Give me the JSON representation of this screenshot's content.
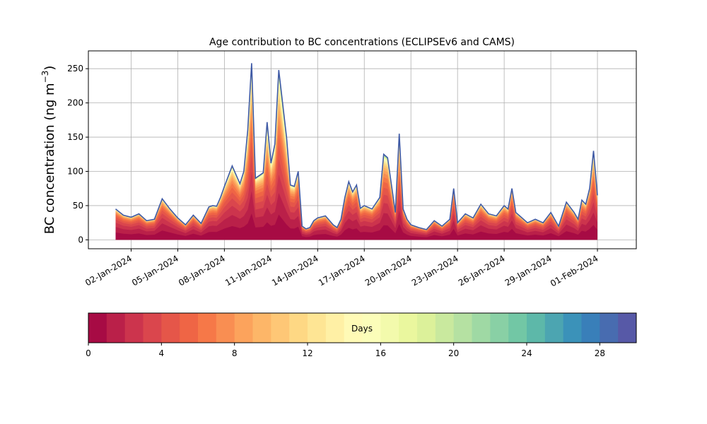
{
  "chart_data": {
    "type": "area",
    "title": "Age contribution to BC concentrations (ECLIPSEv6 and CAMS)",
    "xlabel": "",
    "ylabel": "BC concentration (ng m",
    "ylabel_superscript": "−3",
    "ylabel_suffix": ")",
    "ylim": [
      -13,
      276
    ],
    "yticks": [
      0,
      50,
      100,
      150,
      200,
      250
    ],
    "xlim": [
      "2023-12-30T06:00",
      "2024-02-03T12:00"
    ],
    "xticks": [
      "2024-01-02",
      "2024-01-05",
      "2024-01-08",
      "2024-01-11",
      "2024-01-14",
      "2024-01-17",
      "2024-01-20",
      "2024-01-23",
      "2024-01-26",
      "2024-01-29",
      "2024-02-01"
    ],
    "xtick_labels": [
      "02-Jan-2024",
      "05-Jan-2024",
      "08-Jan-2024",
      "11-Jan-2024",
      "14-Jan-2024",
      "17-Jan-2024",
      "20-Jan-2024",
      "23-Jan-2024",
      "26-Jan-2024",
      "29-Jan-2024",
      "01-Feb-2024"
    ],
    "grid": true,
    "stack_field": "age in days (0–30), one band per day",
    "total": {
      "x": [
        "2024-01-01T00:00",
        "2024-01-01T12:00",
        "2024-01-02T00:00",
        "2024-01-02T12:00",
        "2024-01-03T00:00",
        "2024-01-03T12:00",
        "2024-01-04T00:00",
        "2024-01-04T12:00",
        "2024-01-05T00:00",
        "2024-01-05T12:00",
        "2024-01-06T00:00",
        "2024-01-06T12:00",
        "2024-01-07T00:00",
        "2024-01-07T06:00",
        "2024-01-07T12:00",
        "2024-01-07T18:00",
        "2024-01-08T00:00",
        "2024-01-08T12:00",
        "2024-01-08T18:00",
        "2024-01-09T00:00",
        "2024-01-09T06:00",
        "2024-01-09T12:00",
        "2024-01-09T18:00",
        "2024-01-10T00:00",
        "2024-01-10T12:00",
        "2024-01-10T18:00",
        "2024-01-11T00:00",
        "2024-01-11T06:00",
        "2024-01-11T12:00",
        "2024-01-12T00:00",
        "2024-01-12T06:00",
        "2024-01-12T12:00",
        "2024-01-12T18:00",
        "2024-01-13T00:00",
        "2024-01-13T06:00",
        "2024-01-13T12:00",
        "2024-01-13T18:00",
        "2024-01-14T00:00",
        "2024-01-14T12:00",
        "2024-01-15T00:00",
        "2024-01-15T06:00",
        "2024-01-15T12:00",
        "2024-01-15T18:00",
        "2024-01-16T00:00",
        "2024-01-16T06:00",
        "2024-01-16T12:00",
        "2024-01-16T18:00",
        "2024-01-17T00:00",
        "2024-01-17T12:00",
        "2024-01-18T00:00",
        "2024-01-18T06:00",
        "2024-01-18T12:00",
        "2024-01-19T00:00",
        "2024-01-19T06:00",
        "2024-01-19T12:00",
        "2024-01-19T18:00",
        "2024-01-20T00:00",
        "2024-01-20T12:00",
        "2024-01-21T00:00",
        "2024-01-21T12:00",
        "2024-01-22T00:00",
        "2024-01-22T12:00",
        "2024-01-22T18:00",
        "2024-01-23T00:00",
        "2024-01-23T12:00",
        "2024-01-24T00:00",
        "2024-01-24T12:00",
        "2024-01-25T00:00",
        "2024-01-25T12:00",
        "2024-01-26T00:00",
        "2024-01-26T06:00",
        "2024-01-26T12:00",
        "2024-01-26T18:00",
        "2024-01-27T00:00",
        "2024-01-27T12:00",
        "2024-01-28T00:00",
        "2024-01-28T12:00",
        "2024-01-29T00:00",
        "2024-01-29T12:00",
        "2024-01-30T00:00",
        "2024-01-30T12:00",
        "2024-01-30T18:00",
        "2024-01-31T00:00",
        "2024-01-31T06:00",
        "2024-01-31T12:00",
        "2024-01-31T18:00",
        "2024-02-01T00:00"
      ],
      "values": [
        45,
        36,
        33,
        38,
        28,
        30,
        60,
        45,
        32,
        22,
        36,
        24,
        48,
        50,
        49,
        62,
        78,
        108,
        95,
        82,
        100,
        160,
        258,
        90,
        98,
        172,
        112,
        140,
        248,
        150,
        80,
        78,
        100,
        20,
        16,
        18,
        28,
        32,
        35,
        22,
        18,
        30,
        62,
        85,
        70,
        80,
        46,
        50,
        45,
        62,
        125,
        120,
        40,
        155,
        45,
        30,
        22,
        18,
        15,
        28,
        20,
        30,
        75,
        25,
        38,
        32,
        52,
        38,
        35,
        50,
        45,
        75,
        40,
        35,
        25,
        30,
        25,
        40,
        20,
        55,
        40,
        30,
        58,
        52,
        75,
        130,
        65
      ]
    }
  }
}
